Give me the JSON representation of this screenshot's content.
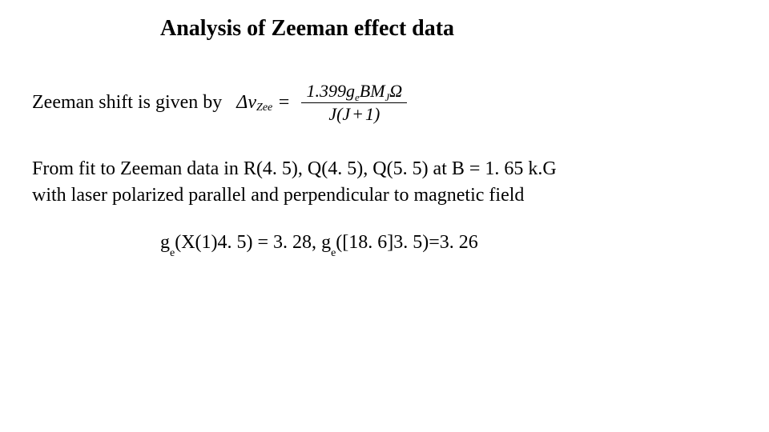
{
  "title": "Analysis of Zeeman effect data",
  "intro": "Zeeman shift is given by",
  "formula": {
    "lhs_delta": "Δ",
    "lhs_nu": "ν",
    "lhs_sub": "Zee",
    "eq": "=",
    "num_coeff": "1.399",
    "num_g": "g",
    "num_g_sub": "e",
    "num_B": "B",
    "num_M": "M",
    "num_M_sub": "J",
    "num_Omega": "Ω",
    "den_J1": "J",
    "den_lparen": "(",
    "den_J2": "J",
    "den_plus": "+",
    "den_one": "1",
    "den_rparen": ")"
  },
  "para_line1": "From fit to Zeeman data in R(4. 5), Q(4. 5), Q(5. 5) at B = 1. 65 k.G",
  "para_line2": "with laser polarized parallel and perpendicular to magnetic field",
  "results": {
    "g1_sym": "g",
    "g1_sub": "e",
    "g1_args": "(X(1)4. 5) = 3. 28,",
    "spacer": "   ",
    "g2_sym": "g",
    "g2_sub": "e",
    "g2_args": "([18. 6]3. 5)=3. 26"
  },
  "styling": {
    "background_color": "#ffffff",
    "text_color": "#000000",
    "title_fontsize": 28,
    "body_fontsize": 24,
    "font_family": "Times New Roman"
  }
}
